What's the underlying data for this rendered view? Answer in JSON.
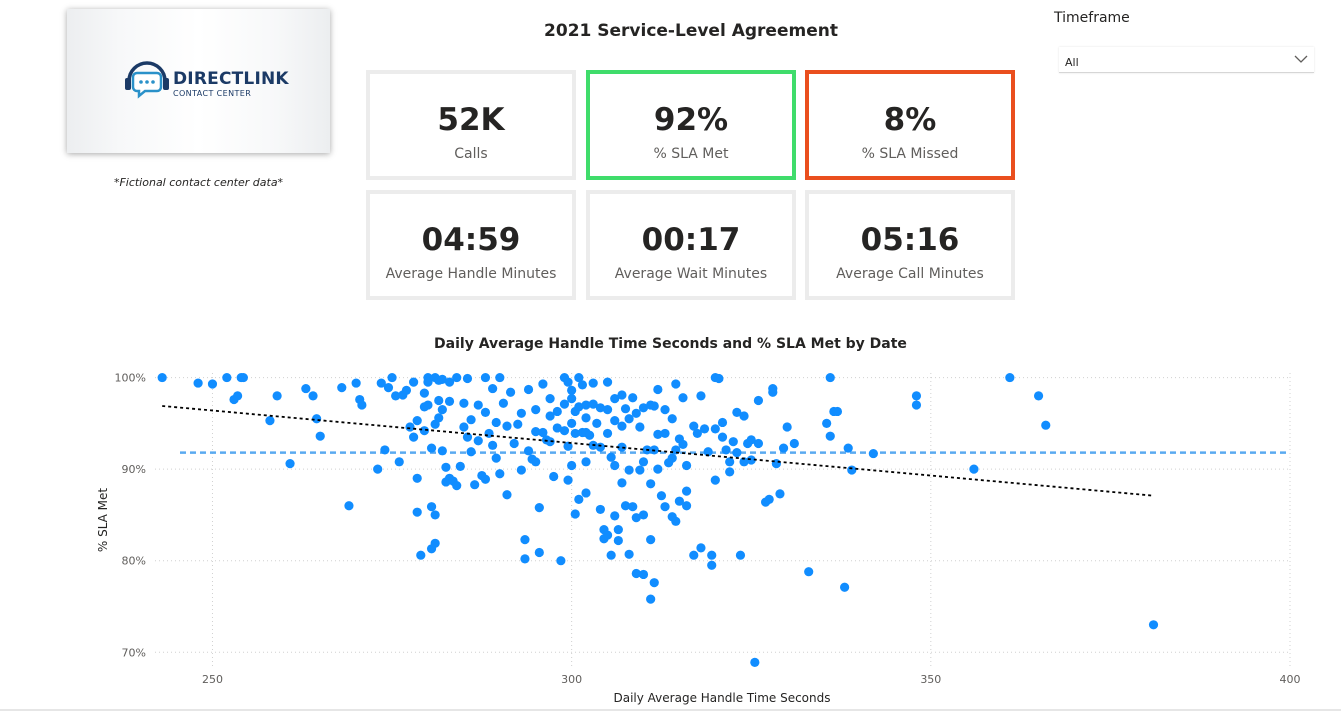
{
  "logo": {
    "name": "DIRECTLINK",
    "subtitle": "CONTACT CENTER",
    "icon": "headset-chat-icon",
    "color": "#1b3a66"
  },
  "note": "*Fictional contact center data*",
  "title": "2021 Service-Level Agreement",
  "kpis": [
    {
      "value": "52K",
      "label": "Calls",
      "border": "#ececec"
    },
    {
      "value": "92%",
      "label": "% SLA Met",
      "border": "#3fdc6b"
    },
    {
      "value": "8%",
      "label": "% SLA Missed",
      "border": "#ea4f1e"
    },
    {
      "value": "04:59",
      "label": "Average Handle Minutes",
      "border": "#ececec"
    },
    {
      "value": "00:17",
      "label": "Average Wait Minutes",
      "border": "#ececec"
    },
    {
      "value": "05:16",
      "label": "Average Call Minutes",
      "border": "#ececec"
    }
  ],
  "slicer": {
    "title": "Timeframe",
    "value": "All",
    "icon": "chevron-down-icon"
  },
  "chart_data": {
    "type": "scatter",
    "title": "Daily Average Handle Time Seconds and % SLA Met by Date",
    "xlabel": "Daily Average Handle Time Seconds",
    "ylabel": "% SLA Met",
    "xlim": [
      242,
      400
    ],
    "ylim": [
      68.5,
      100.5
    ],
    "xticks": [
      250,
      300,
      350,
      400
    ],
    "yticks": [
      70,
      80,
      90,
      100
    ],
    "ytick_labels": [
      "70%",
      "80%",
      "90%",
      "100%"
    ],
    "grid": true,
    "point_color": "#118dff",
    "reference_line": {
      "y": 91.8,
      "color": "#5aaaf0",
      "style": "dashed"
    },
    "trend_line": {
      "x": [
        243,
        381
      ],
      "y": [
        96.9,
        87.1
      ],
      "color": "#000000",
      "style": "dotted"
    },
    "points": [
      [
        243,
        100
      ],
      [
        248,
        99.4
      ],
      [
        250,
        99.3
      ],
      [
        252,
        100
      ],
      [
        253,
        97.6
      ],
      [
        253.5,
        98
      ],
      [
        254,
        100
      ],
      [
        254.3,
        100
      ],
      [
        258,
        95.3
      ],
      [
        259,
        98
      ],
      [
        260.8,
        90.6
      ],
      [
        263,
        98.8
      ],
      [
        264,
        98
      ],
      [
        264.5,
        95.5
      ],
      [
        265,
        93.6
      ],
      [
        268,
        98.9
      ],
      [
        269,
        86
      ],
      [
        270,
        99.4
      ],
      [
        270.5,
        97.6
      ],
      [
        270.8,
        97
      ],
      [
        273,
        90
      ],
      [
        273.5,
        99.4
      ],
      [
        274,
        92.1
      ],
      [
        274.5,
        98.9
      ],
      [
        275,
        100
      ],
      [
        275.5,
        98
      ],
      [
        276,
        90.8
      ],
      [
        276.5,
        98.1
      ],
      [
        277,
        98.6
      ],
      [
        277.5,
        94.6
      ],
      [
        278,
        99.5
      ],
      [
        278,
        93.5
      ],
      [
        278.5,
        95.3
      ],
      [
        278.5,
        89
      ],
      [
        278.5,
        85.3
      ],
      [
        279,
        80.6
      ],
      [
        279.5,
        98.3
      ],
      [
        279.5,
        96.8
      ],
      [
        279.5,
        94.2
      ],
      [
        280,
        100
      ],
      [
        280,
        99.5
      ],
      [
        280,
        97
      ],
      [
        280.5,
        92.3
      ],
      [
        280.5,
        85.9
      ],
      [
        280.5,
        81.3
      ],
      [
        281,
        100
      ],
      [
        281,
        94.9
      ],
      [
        281,
        85
      ],
      [
        281,
        81.9
      ],
      [
        281.5,
        99.7
      ],
      [
        281.5,
        97.5
      ],
      [
        281.5,
        95.6
      ],
      [
        282,
        99.8
      ],
      [
        282,
        96.5
      ],
      [
        282,
        92
      ],
      [
        282.5,
        90.2
      ],
      [
        282.5,
        88.6
      ],
      [
        283,
        99.5
      ],
      [
        283,
        97.4
      ],
      [
        283,
        89
      ],
      [
        283.5,
        88.7
      ],
      [
        284,
        100
      ],
      [
        284,
        88.2
      ],
      [
        284.5,
        90.3
      ],
      [
        285,
        97.2
      ],
      [
        285,
        94.6
      ],
      [
        285.5,
        99.9
      ],
      [
        285.5,
        93.5
      ],
      [
        286,
        95.4
      ],
      [
        286,
        91.9
      ],
      [
        286.5,
        88.3
      ],
      [
        287,
        97
      ],
      [
        287,
        93.1
      ],
      [
        287.5,
        89.3
      ],
      [
        288,
        100
      ],
      [
        288,
        96.2
      ],
      [
        288,
        88.9
      ],
      [
        288.5,
        93.9
      ],
      [
        289,
        98.8
      ],
      [
        289,
        92.6
      ],
      [
        289.5,
        95.1
      ],
      [
        289.5,
        91.2
      ],
      [
        290,
        100
      ],
      [
        290,
        89.5
      ],
      [
        290.5,
        97.2
      ],
      [
        291,
        94.7
      ],
      [
        291,
        87.2
      ],
      [
        291.5,
        98.4
      ],
      [
        292,
        92.8
      ],
      [
        292.5,
        94.9
      ],
      [
        293,
        96.1
      ],
      [
        293,
        89.9
      ],
      [
        293.5,
        82.3
      ],
      [
        293.5,
        80.2
      ],
      [
        294,
        98.7
      ],
      [
        294,
        92
      ],
      [
        294.5,
        91.1
      ],
      [
        295,
        96.5
      ],
      [
        295,
        94.1
      ],
      [
        295,
        90.8
      ],
      [
        295.5,
        85.8
      ],
      [
        295.5,
        80.9
      ],
      [
        296,
        99.3
      ],
      [
        296,
        94
      ],
      [
        296.5,
        93.2
      ],
      [
        297,
        97.7
      ],
      [
        297,
        95.8
      ],
      [
        297,
        93
      ],
      [
        297.5,
        89.2
      ],
      [
        298,
        96.3
      ],
      [
        298,
        94.5
      ],
      [
        298.5,
        80
      ],
      [
        299,
        100
      ],
      [
        299,
        97.1
      ],
      [
        299,
        94.2
      ],
      [
        299.5,
        99.5
      ],
      [
        299.5,
        92.5
      ],
      [
        299.5,
        88.8
      ],
      [
        300,
        98.6
      ],
      [
        300,
        97.7
      ],
      [
        300,
        95
      ],
      [
        300,
        90.4
      ],
      [
        300.5,
        96.3
      ],
      [
        300.5,
        93.9
      ],
      [
        300.5,
        85.1
      ],
      [
        301,
        100
      ],
      [
        301,
        96.8
      ],
      [
        301,
        86.7
      ],
      [
        301.5,
        99.2
      ],
      [
        301.5,
        94
      ],
      [
        302,
        97
      ],
      [
        302,
        95.6
      ],
      [
        302,
        94
      ],
      [
        302,
        90.8
      ],
      [
        302,
        87.4
      ],
      [
        302.5,
        93.7
      ],
      [
        303,
        99.4
      ],
      [
        303,
        97.1
      ],
      [
        303,
        92.6
      ],
      [
        303.5,
        95
      ],
      [
        304,
        96.7
      ],
      [
        304,
        92.4
      ],
      [
        304,
        85.6
      ],
      [
        304.5,
        83.4
      ],
      [
        304.5,
        82.4
      ],
      [
        305,
        99.5
      ],
      [
        305,
        96.5
      ],
      [
        305,
        93.9
      ],
      [
        305,
        82.8
      ],
      [
        305.5,
        91.3
      ],
      [
        305.5,
        80.6
      ],
      [
        306,
        97.7
      ],
      [
        306,
        95.3
      ],
      [
        306,
        90.4
      ],
      [
        306,
        84.9
      ],
      [
        306.5,
        83.4
      ],
      [
        306.5,
        82.2
      ],
      [
        307,
        98.1
      ],
      [
        307,
        94.7
      ],
      [
        307,
        92.4
      ],
      [
        307,
        88.5
      ],
      [
        307.5,
        96.6
      ],
      [
        307.5,
        86
      ],
      [
        308,
        95.5
      ],
      [
        308,
        89.9
      ],
      [
        308,
        80.7
      ],
      [
        308.5,
        97.8
      ],
      [
        308.5,
        85.9
      ],
      [
        309,
        96.1
      ],
      [
        309,
        84.7
      ],
      [
        309,
        78.6
      ],
      [
        309.5,
        94.6
      ],
      [
        309.5,
        89.9
      ],
      [
        310,
        96.7
      ],
      [
        310,
        90.8
      ],
      [
        310,
        85
      ],
      [
        310,
        78.5
      ],
      [
        310.5,
        92.1
      ],
      [
        311,
        97
      ],
      [
        311,
        88.4
      ],
      [
        311,
        82.3
      ],
      [
        311,
        75.8
      ],
      [
        311.5,
        96.9
      ],
      [
        311.5,
        92.1
      ],
      [
        311.5,
        77.6
      ],
      [
        312,
        98.7
      ],
      [
        312,
        93.8
      ],
      [
        312,
        90
      ],
      [
        312.5,
        87.1
      ],
      [
        313,
        96.5
      ],
      [
        313,
        93.9
      ],
      [
        313,
        85.9
      ],
      [
        313.5,
        90.7
      ],
      [
        314,
        95.5
      ],
      [
        314,
        91.2
      ],
      [
        314,
        84.8
      ],
      [
        314.5,
        99.3
      ],
      [
        314.5,
        92.1
      ],
      [
        314.5,
        84.3
      ],
      [
        315,
        93.3
      ],
      [
        315,
        86.5
      ],
      [
        315.5,
        97.8
      ],
      [
        315.5,
        92.7
      ],
      [
        316,
        90.4
      ],
      [
        316,
        87.6
      ],
      [
        316,
        86
      ],
      [
        317,
        94.7
      ],
      [
        317,
        80.6
      ],
      [
        317.5,
        93.9
      ],
      [
        318,
        98
      ],
      [
        318,
        81.4
      ],
      [
        318.5,
        94.4
      ],
      [
        319,
        91.9
      ],
      [
        319.5,
        80.6
      ],
      [
        319.5,
        79.5
      ],
      [
        320,
        100
      ],
      [
        320,
        94.4
      ],
      [
        320,
        88.8
      ],
      [
        320.5,
        99.9
      ],
      [
        321,
        95.1
      ],
      [
        321,
        93.5
      ],
      [
        321.5,
        92.1
      ],
      [
        322,
        90.8
      ],
      [
        322,
        89.7
      ],
      [
        322.5,
        93
      ],
      [
        323,
        96.2
      ],
      [
        323,
        91.8
      ],
      [
        323.5,
        80.6
      ],
      [
        324,
        95.8
      ],
      [
        324,
        90.8
      ],
      [
        324.5,
        92.8
      ],
      [
        325,
        93.2
      ],
      [
        325,
        91
      ],
      [
        325.5,
        68.9
      ],
      [
        326,
        92.8
      ],
      [
        326,
        97.5
      ],
      [
        327,
        86.4
      ],
      [
        327.5,
        86.7
      ],
      [
        328,
        98.4
      ],
      [
        328,
        98.8
      ],
      [
        328.5,
        90.6
      ],
      [
        329,
        87.3
      ],
      [
        329.5,
        92.3
      ],
      [
        330,
        94.6
      ],
      [
        331,
        92.8
      ],
      [
        333,
        78.8
      ],
      [
        335.5,
        95
      ],
      [
        336,
        100
      ],
      [
        336,
        93.6
      ],
      [
        336.5,
        96.3
      ],
      [
        337,
        96.3
      ],
      [
        338,
        77.1
      ],
      [
        338.5,
        92.3
      ],
      [
        339,
        89.9
      ],
      [
        342,
        91.7
      ],
      [
        348,
        98
      ],
      [
        348,
        97
      ],
      [
        356,
        90
      ],
      [
        361,
        100
      ],
      [
        365,
        98
      ],
      [
        366,
        94.8
      ],
      [
        381,
        73
      ]
    ]
  }
}
